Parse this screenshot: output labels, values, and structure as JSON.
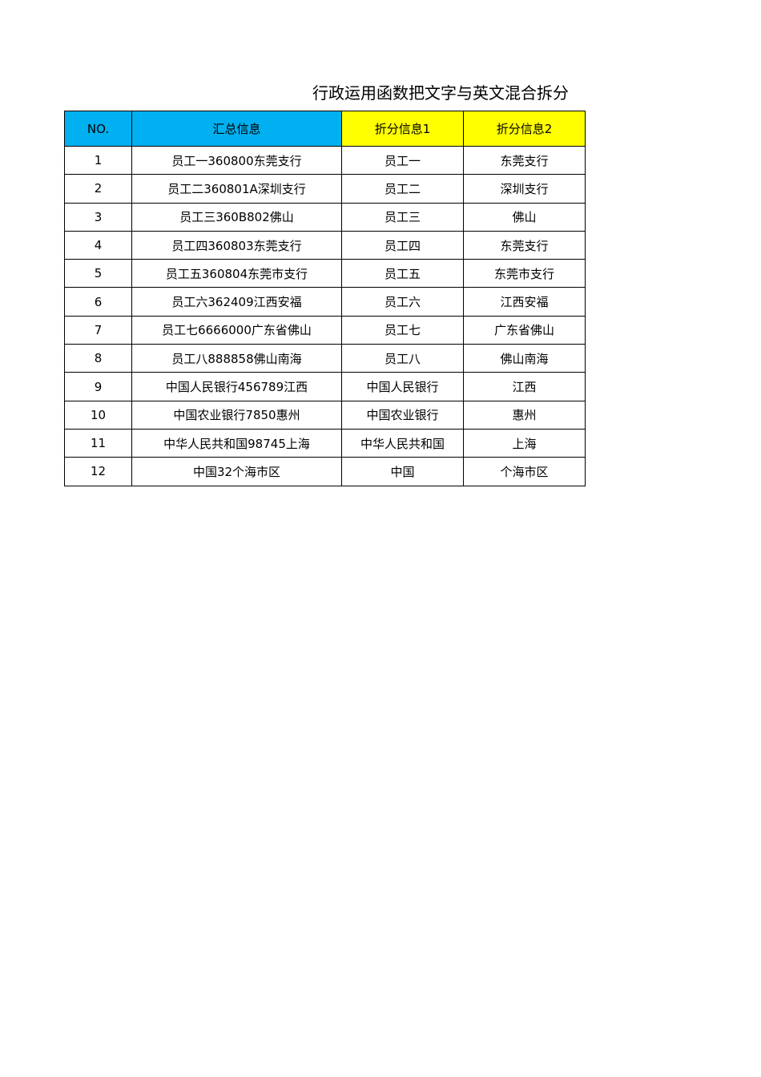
{
  "header": {
    "title": "行政运用函数把文字与英文混合拆分"
  },
  "table": {
    "columns": [
      "NO.",
      "汇总信息",
      "折分信息1",
      "折分信息2"
    ],
    "rows": [
      [
        "1",
        "员工一360800东莞支行",
        "员工一",
        "东莞支行"
      ],
      [
        "2",
        "员工二360801A深圳支行",
        "员工二",
        "深圳支行"
      ],
      [
        "3",
        "员工三360B802佛山",
        "员工三",
        "佛山"
      ],
      [
        "4",
        "员工四360803东莞支行",
        "员工四",
        "东莞支行"
      ],
      [
        "5",
        "员工五360804东莞市支行",
        "员工五",
        "东莞市支行"
      ],
      [
        "6",
        "员工六362409江西安福",
        "员工六",
        "江西安福"
      ],
      [
        "7",
        "员工七6666000广东省佛山",
        "员工七",
        "广东省佛山"
      ],
      [
        "8",
        "员工八888858佛山南海",
        "员工八",
        "佛山南海"
      ],
      [
        "9",
        "中国人民银行456789江西",
        "中国人民银行",
        "江西"
      ],
      [
        "10",
        "中国农业银行7850惠州",
        "中国农业银行",
        "惠州"
      ],
      [
        "11",
        "中华人民共和国98745上海",
        "中华人民共和国",
        "上海"
      ],
      [
        "12",
        "中国32个海市区",
        "中国",
        "个海市区"
      ]
    ]
  }
}
